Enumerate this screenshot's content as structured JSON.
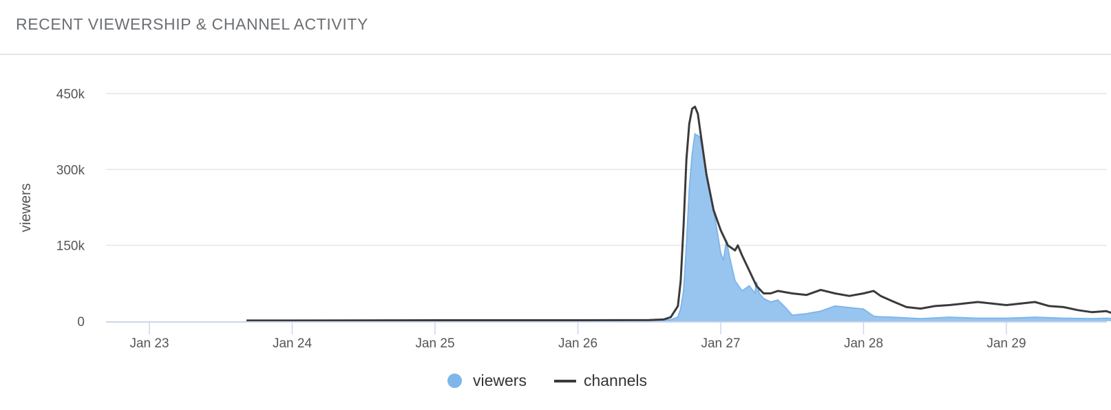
{
  "header": {
    "title": "RECENT VIEWERSHIP & CHANNEL ACTIVITY"
  },
  "colors": {
    "viewers_fill": "#98c5ef",
    "viewers_line": "#7fb6ea",
    "channels_line": "#3a3a3a",
    "grid": "#e6e6e6",
    "axis": "#ccd6eb"
  },
  "legend": [
    {
      "label": "viewers",
      "symbol": "dot",
      "color": "#7fb6ea"
    },
    {
      "label": "channels",
      "symbol": "line",
      "color": "#3a3a3a"
    }
  ],
  "chart_data": {
    "type": "area",
    "title": "RECENT VIEWERSHIP & CHANNEL ACTIVITY",
    "xlabel": "",
    "ylabel": "viewers",
    "ylim": [
      0,
      450000
    ],
    "yticks": [
      "0",
      "150k",
      "300k",
      "450k"
    ],
    "ytick_values": [
      0,
      150000,
      300000,
      450000
    ],
    "xticks": [
      "Jan 23",
      "Jan 24",
      "Jan 25",
      "Jan 26",
      "Jan 27",
      "Jan 28",
      "Jan 29"
    ],
    "grid": true,
    "legend_position": "bottom",
    "x_unit": "days since Jan 23 00:00",
    "series": [
      {
        "name": "viewers",
        "type": "area",
        "x": [
          0.68,
          1.0,
          2.0,
          3.0,
          3.6,
          3.65,
          3.7,
          3.72,
          3.74,
          3.76,
          3.78,
          3.8,
          3.82,
          3.85,
          3.88,
          3.9,
          3.92,
          3.95,
          3.98,
          4.0,
          4.02,
          4.04,
          4.06,
          4.1,
          4.15,
          4.2,
          4.24,
          4.25,
          4.27,
          4.3,
          4.35,
          4.4,
          4.45,
          4.5,
          4.6,
          4.7,
          4.8,
          4.9,
          5.0,
          5.07,
          5.1,
          5.2,
          5.4,
          5.6,
          5.8,
          6.0,
          6.2,
          6.4,
          6.6,
          6.7,
          6.75,
          6.78
        ],
        "values": [
          500,
          500,
          500,
          800,
          1500,
          3000,
          8000,
          25000,
          60000,
          150000,
          260000,
          330000,
          370000,
          365000,
          330000,
          290000,
          260000,
          220000,
          170000,
          135000,
          120000,
          160000,
          130000,
          80000,
          60000,
          70000,
          55000,
          78000,
          55000,
          45000,
          38000,
          42000,
          28000,
          12000,
          15000,
          20000,
          30000,
          27000,
          24000,
          10000,
          9000,
          8000,
          5000,
          8000,
          6000,
          6000,
          8000,
          6000,
          5000,
          6000,
          5000,
          9000
        ]
      },
      {
        "name": "channels",
        "type": "line",
        "x": [
          0.68,
          1.0,
          2.0,
          3.0,
          3.5,
          3.6,
          3.65,
          3.7,
          3.72,
          3.74,
          3.76,
          3.78,
          3.8,
          3.82,
          3.84,
          3.86,
          3.88,
          3.9,
          3.95,
          4.0,
          4.05,
          4.1,
          4.12,
          4.15,
          4.2,
          4.25,
          4.3,
          4.35,
          4.4,
          4.5,
          4.6,
          4.7,
          4.8,
          4.9,
          5.0,
          5.07,
          5.12,
          5.2,
          5.3,
          5.4,
          5.5,
          5.6,
          5.7,
          5.8,
          5.9,
          6.0,
          6.1,
          6.2,
          6.3,
          6.4,
          6.5,
          6.6,
          6.7,
          6.75,
          6.78
        ],
        "values": [
          1500,
          1500,
          2000,
          2000,
          2500,
          3500,
          8000,
          30000,
          80000,
          190000,
          320000,
          390000,
          420000,
          424000,
          410000,
          370000,
          330000,
          290000,
          220000,
          180000,
          150000,
          140000,
          150000,
          130000,
          100000,
          70000,
          55000,
          55000,
          60000,
          55000,
          52000,
          62000,
          55000,
          50000,
          55000,
          60000,
          50000,
          40000,
          28000,
          25000,
          30000,
          32000,
          35000,
          38000,
          35000,
          32000,
          35000,
          38000,
          30000,
          28000,
          22000,
          18000,
          20000,
          15000,
          20000
        ]
      }
    ]
  }
}
